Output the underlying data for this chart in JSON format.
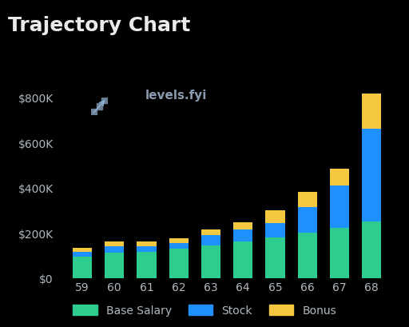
{
  "title": "Trajectory Chart",
  "background_color": "#000000",
  "text_color": "#b0b8c0",
  "title_color": "#e8eaec",
  "categories": [
    "59",
    "60",
    "61",
    "62",
    "63",
    "64",
    "65",
    "66",
    "67",
    "68"
  ],
  "base_salary": [
    95000,
    110000,
    115000,
    130000,
    145000,
    160000,
    178000,
    200000,
    220000,
    250000
  ],
  "stock": [
    20000,
    30000,
    25000,
    25000,
    45000,
    55000,
    65000,
    115000,
    190000,
    410000
  ],
  "bonus": [
    18000,
    20000,
    22000,
    20000,
    25000,
    30000,
    55000,
    65000,
    75000,
    155000
  ],
  "base_color": "#2ecc8e",
  "stock_color": "#1e90ff",
  "bonus_color": "#f5c842",
  "ylim": [
    0,
    900000
  ],
  "yticks": [
    0,
    200000,
    400000,
    600000,
    800000
  ],
  "ytick_labels": [
    "$0",
    "$200K",
    "$400K",
    "$600K",
    "$800K"
  ],
  "legend_labels": [
    "Base Salary",
    "Stock",
    "Bonus"
  ],
  "watermark_text": "levels.fyi",
  "title_fontsize": 18,
  "axis_fontsize": 10,
  "legend_fontsize": 10
}
